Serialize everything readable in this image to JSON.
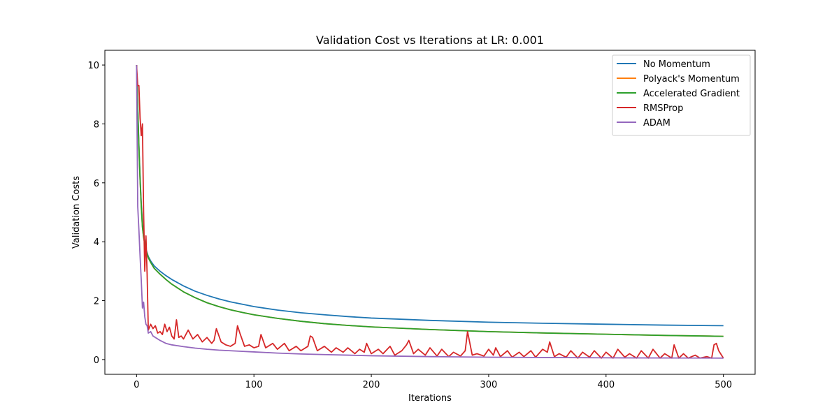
{
  "chart_data": {
    "type": "line",
    "title": "Validation Cost vs Iterations at LR: 0.001",
    "xlabel": "Iterations",
    "ylabel": "Validation Costs",
    "xlim": [
      -27,
      527
    ],
    "ylim": [
      -0.5,
      10.5
    ],
    "xticks": [
      0,
      100,
      200,
      300,
      400,
      500
    ],
    "yticks": [
      0,
      2,
      4,
      6,
      8,
      10
    ],
    "grid": false,
    "legend": "top-right",
    "series": [
      {
        "name": "No Momentum",
        "color": "#1f77b4",
        "x": [
          0,
          1,
          2,
          3,
          4,
          5,
          6,
          8,
          10,
          12,
          15,
          20,
          25,
          30,
          40,
          50,
          60,
          70,
          80,
          90,
          100,
          120,
          140,
          160,
          180,
          200,
          250,
          300,
          350,
          400,
          450,
          500
        ],
        "y": [
          10.0,
          8.6,
          7.3,
          6.2,
          5.3,
          4.6,
          4.2,
          3.75,
          3.5,
          3.35,
          3.18,
          3.0,
          2.85,
          2.72,
          2.5,
          2.32,
          2.18,
          2.06,
          1.96,
          1.88,
          1.8,
          1.68,
          1.59,
          1.52,
          1.46,
          1.41,
          1.33,
          1.27,
          1.23,
          1.2,
          1.17,
          1.15
        ]
      },
      {
        "name": "Polyack's Momentum",
        "color": "#ff7f0e",
        "x": [
          0,
          1,
          2,
          3,
          4,
          5,
          6,
          8,
          10,
          12,
          15,
          20,
          25,
          30,
          40,
          50,
          60,
          70,
          80,
          90,
          100,
          120,
          140,
          160,
          180,
          200,
          250,
          300,
          350,
          400,
          450,
          500
        ],
        "y": [
          10.0,
          8.5,
          7.2,
          6.1,
          5.2,
          4.5,
          4.15,
          3.72,
          3.46,
          3.3,
          3.1,
          2.9,
          2.72,
          2.56,
          2.3,
          2.1,
          1.93,
          1.8,
          1.69,
          1.6,
          1.52,
          1.4,
          1.3,
          1.22,
          1.16,
          1.11,
          1.02,
          0.95,
          0.9,
          0.86,
          0.82,
          0.79
        ]
      },
      {
        "name": "Accelerated Gradient",
        "color": "#2ca02c",
        "x": [
          0,
          1,
          2,
          3,
          4,
          5,
          6,
          8,
          10,
          12,
          15,
          20,
          25,
          30,
          40,
          50,
          60,
          70,
          80,
          90,
          100,
          120,
          140,
          160,
          180,
          200,
          250,
          300,
          350,
          400,
          450,
          500
        ],
        "y": [
          10.0,
          8.5,
          7.2,
          6.1,
          5.2,
          4.5,
          4.15,
          3.72,
          3.46,
          3.3,
          3.1,
          2.9,
          2.72,
          2.56,
          2.3,
          2.1,
          1.93,
          1.8,
          1.69,
          1.6,
          1.52,
          1.4,
          1.3,
          1.22,
          1.16,
          1.11,
          1.02,
          0.95,
          0.9,
          0.86,
          0.82,
          0.79
        ]
      },
      {
        "name": "RMSProp",
        "color": "#d62728",
        "x": [
          0,
          1,
          2,
          3,
          4,
          5,
          6,
          7,
          8,
          9,
          10,
          12,
          14,
          16,
          18,
          20,
          22,
          24,
          26,
          28,
          30,
          32,
          34,
          36,
          38,
          40,
          44,
          48,
          52,
          56,
          60,
          64,
          66,
          68,
          72,
          76,
          80,
          84,
          86,
          88,
          92,
          96,
          100,
          104,
          106,
          110,
          116,
          120,
          126,
          130,
          136,
          140,
          146,
          148,
          150,
          154,
          160,
          166,
          170,
          176,
          180,
          186,
          190,
          194,
          196,
          200,
          206,
          210,
          216,
          220,
          226,
          230,
          232,
          236,
          240,
          246,
          250,
          256,
          260,
          266,
          270,
          276,
          280,
          282,
          286,
          290,
          296,
          300,
          304,
          306,
          310,
          316,
          320,
          326,
          330,
          336,
          340,
          346,
          350,
          352,
          356,
          360,
          366,
          370,
          376,
          380,
          386,
          390,
          396,
          400,
          406,
          410,
          416,
          420,
          426,
          430,
          436,
          440,
          446,
          450,
          456,
          458,
          462,
          466,
          470,
          476,
          480,
          486,
          490,
          492,
          494,
          496,
          500
        ],
        "y": [
          10.0,
          9.3,
          9.3,
          8.2,
          7.6,
          8.0,
          5.0,
          3.0,
          4.2,
          2.9,
          1.0,
          1.2,
          1.05,
          1.15,
          0.9,
          0.95,
          0.85,
          1.2,
          0.95,
          1.1,
          0.8,
          0.7,
          1.35,
          0.75,
          0.8,
          0.7,
          1.0,
          0.7,
          0.85,
          0.6,
          0.75,
          0.55,
          0.65,
          1.05,
          0.6,
          0.5,
          0.45,
          0.55,
          1.15,
          0.9,
          0.45,
          0.5,
          0.4,
          0.45,
          0.85,
          0.4,
          0.55,
          0.35,
          0.55,
          0.3,
          0.45,
          0.3,
          0.45,
          0.8,
          0.75,
          0.3,
          0.45,
          0.25,
          0.4,
          0.25,
          0.4,
          0.2,
          0.35,
          0.25,
          0.55,
          0.2,
          0.35,
          0.2,
          0.45,
          0.15,
          0.3,
          0.5,
          0.65,
          0.2,
          0.35,
          0.15,
          0.4,
          0.12,
          0.35,
          0.1,
          0.25,
          0.12,
          0.3,
          0.95,
          0.15,
          0.2,
          0.12,
          0.35,
          0.15,
          0.4,
          0.1,
          0.3,
          0.08,
          0.25,
          0.1,
          0.3,
          0.08,
          0.35,
          0.25,
          0.6,
          0.1,
          0.2,
          0.08,
          0.3,
          0.05,
          0.25,
          0.08,
          0.3,
          0.05,
          0.25,
          0.05,
          0.35,
          0.08,
          0.2,
          0.05,
          0.3,
          0.05,
          0.35,
          0.05,
          0.2,
          0.05,
          0.5,
          0.05,
          0.2,
          0.05,
          0.15,
          0.05,
          0.1,
          0.05,
          0.5,
          0.55,
          0.3,
          0.05
        ]
      },
      {
        "name": "ADAM",
        "color": "#9467bd",
        "x": [
          0,
          1,
          2,
          3,
          4,
          5,
          6,
          7,
          8,
          9,
          10,
          12,
          14,
          16,
          18,
          20,
          25,
          30,
          40,
          50,
          60,
          70,
          80,
          90,
          100,
          120,
          140,
          160,
          180,
          200,
          250,
          300,
          350,
          400,
          450,
          500
        ],
        "y": [
          10.0,
          5.2,
          4.4,
          3.5,
          2.7,
          1.75,
          1.95,
          1.45,
          1.2,
          1.15,
          0.9,
          0.95,
          0.8,
          0.75,
          0.7,
          0.65,
          0.55,
          0.5,
          0.44,
          0.39,
          0.35,
          0.32,
          0.3,
          0.28,
          0.26,
          0.22,
          0.19,
          0.17,
          0.15,
          0.13,
          0.1,
          0.08,
          0.07,
          0.06,
          0.055,
          0.05
        ]
      }
    ]
  }
}
